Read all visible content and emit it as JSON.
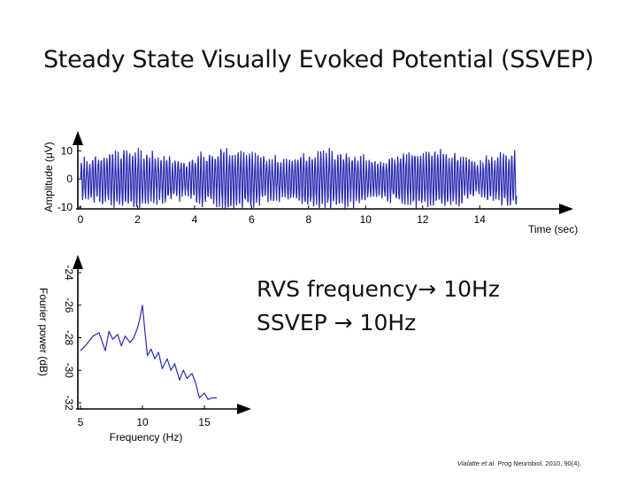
{
  "slide": {
    "title": "Steady State Visually Evoked Potential (SSVEP)",
    "callout_line1": "RVS frequency→ 10Hz",
    "callout_line2": "SSVEP → 10Hz",
    "citation_authors": "Vialatte et al.",
    "citation_source": " Prog Neurobiol. 2010, 90(4)."
  },
  "chart_data": [
    {
      "type": "line",
      "xlabel": "Time (sec)",
      "ylabel": "Amplitude (μV)",
      "xlim": [
        0,
        16
      ],
      "ylim": [
        -10,
        12
      ],
      "xticks": [
        "0",
        "2",
        "4",
        "6",
        "8",
        "10",
        "12",
        "14"
      ],
      "yticks": [
        "10",
        "0",
        "-10"
      ],
      "signal_frequency_hz": 10,
      "signal_amplitude_uv": [
        -10,
        10
      ],
      "color": "#2a2ab0"
    },
    {
      "type": "line",
      "xlabel": "Frequency (Hz)",
      "ylabel": "Fourier power (dB)",
      "xlim": [
        5,
        16
      ],
      "ylim": [
        -32,
        -24
      ],
      "xticks": [
        "5",
        "10",
        "15"
      ],
      "yticks": [
        "-24",
        "-26",
        "-28",
        "-30",
        "-32"
      ],
      "color": "#2a2ab0",
      "x": [
        5.0,
        5.5,
        6.0,
        6.5,
        7.0,
        7.3,
        7.6,
        8.0,
        8.3,
        8.6,
        9.0,
        9.3,
        9.6,
        9.8,
        10.0,
        10.2,
        10.4,
        10.7,
        11.0,
        11.3,
        11.6,
        12.0,
        12.3,
        12.6,
        13.0,
        13.3,
        13.6,
        14.0,
        14.3,
        14.6,
        15.0,
        15.3,
        15.6,
        16.0
      ],
      "y": [
        -28.8,
        -28.4,
        -27.9,
        -27.7,
        -28.8,
        -27.6,
        -28.1,
        -27.8,
        -28.5,
        -27.9,
        -28.3,
        -28.0,
        -27.4,
        -26.8,
        -26.0,
        -27.6,
        -29.1,
        -28.7,
        -29.3,
        -28.9,
        -29.9,
        -29.3,
        -30.0,
        -29.6,
        -30.6,
        -30.0,
        -30.5,
        -30.2,
        -30.8,
        -31.7,
        -31.4,
        -31.8,
        -31.7,
        -31.7
      ]
    }
  ]
}
